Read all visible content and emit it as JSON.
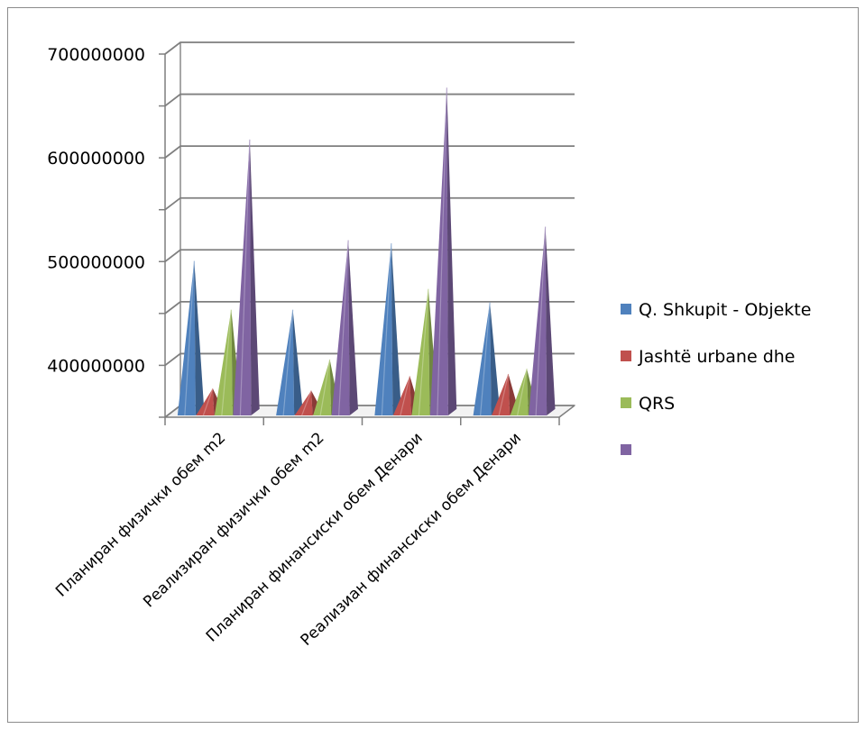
{
  "chart_data": {
    "type": "bar",
    "style": "3d-pyramid",
    "title": "",
    "xlabel": "",
    "ylabel": "",
    "ylim": [
      350000000,
      700000000
    ],
    "y_ticks": [
      {
        "value": 400000000,
        "label": "400000000"
      },
      {
        "value": 500000000,
        "label": "500000000"
      },
      {
        "value": 600000000,
        "label": "600000000"
      },
      {
        "value": 700000000,
        "label": "700000000"
      }
    ],
    "gridlines": true,
    "legend_position": "right",
    "categories": [
      "Планиран физички обем m2",
      "Реализиран физички обем m2",
      "Планиран финансиски обем Денари",
      "Реализиан финансиски обем Денари"
    ],
    "series": [
      {
        "name": "Q. Shkupit - Objekte",
        "color": "#4f81bd",
        "values": [
          495000000,
          448000000,
          512000000,
          455000000
        ]
      },
      {
        "name": "Jashtë urbane dhe",
        "color": "#c0504d",
        "values": [
          372000000,
          370000000,
          384000000,
          386000000
        ]
      },
      {
        "name": "QRS",
        "color": "#9bbb59",
        "values": [
          448000000,
          400000000,
          468000000,
          391000000
        ]
      },
      {
        "name": "",
        "color": "#8064a2",
        "values": [
          612000000,
          515000000,
          662000000,
          528000000
        ]
      }
    ]
  }
}
